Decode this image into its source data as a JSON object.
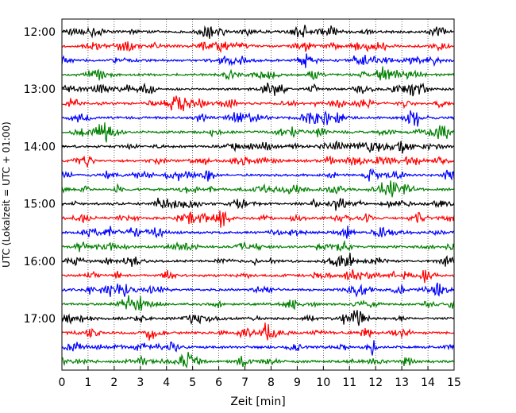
{
  "chart_data": {
    "type": "line",
    "title": "",
    "xlabel": "Zeit  [min]",
    "ylabel": "UTC (Lokalzeit = UTC + 01:00)",
    "xlim": [
      0,
      15
    ],
    "x_ticks": [
      0,
      1,
      2,
      3,
      4,
      5,
      6,
      7,
      8,
      9,
      10,
      11,
      12,
      13,
      14,
      15
    ],
    "grid": "vertical-dotted",
    "legend": "none",
    "trace_interval_min": 15,
    "trace_colors": [
      "#000000",
      "#ff0000",
      "#0000ff",
      "#008000"
    ],
    "y_ticks": [
      "12:00",
      "13:00",
      "14:00",
      "15:00",
      "16:00",
      "17:00"
    ],
    "traces": [
      {
        "start": "12:00"
      },
      {
        "start": "12:15"
      },
      {
        "start": "12:30"
      },
      {
        "start": "12:45"
      },
      {
        "start": "13:00"
      },
      {
        "start": "13:15"
      },
      {
        "start": "13:30"
      },
      {
        "start": "13:45"
      },
      {
        "start": "14:00"
      },
      {
        "start": "14:15"
      },
      {
        "start": "14:30"
      },
      {
        "start": "14:45"
      },
      {
        "start": "15:00"
      },
      {
        "start": "15:15"
      },
      {
        "start": "15:30"
      },
      {
        "start": "15:45"
      },
      {
        "start": "16:00"
      },
      {
        "start": "16:15"
      },
      {
        "start": "16:30"
      },
      {
        "start": "16:45"
      },
      {
        "start": "17:00"
      },
      {
        "start": "17:15"
      },
      {
        "start": "17:30"
      },
      {
        "start": "17:45"
      }
    ]
  }
}
